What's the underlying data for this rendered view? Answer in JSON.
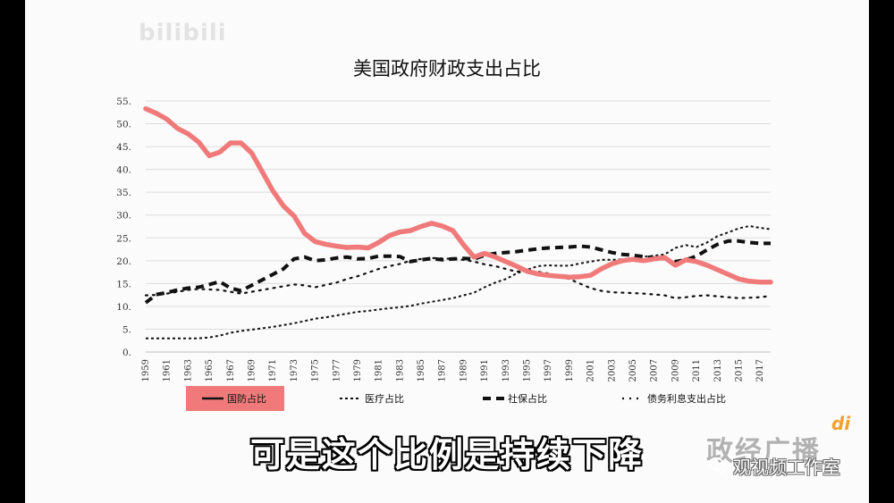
{
  "watermark": "bilibili",
  "subtitle": "可是这个比例是持续下降",
  "logo": "政经广播",
  "logo_mark": "di",
  "channel_label": "观视频工作室",
  "colors": {
    "defense": "#f07a7a",
    "legend_highlight": "#f07a7a",
    "other_series": "#111111"
  },
  "icons": {
    "channel": "wechat-icon"
  },
  "chart_data": {
    "type": "line",
    "title": "美国政府财政支出占比",
    "xlabel": "",
    "ylabel": "",
    "ylim": [
      0,
      55
    ],
    "yticks": [
      "0.",
      "5.",
      "10.",
      "15.",
      "20.",
      "25.",
      "30.",
      "35.",
      "40.",
      "45.",
      "50.",
      "55."
    ],
    "grid": true,
    "legend_position": "bottom",
    "x": [
      1959,
      1960,
      1961,
      1962,
      1963,
      1964,
      1965,
      1966,
      1967,
      1968,
      1969,
      1970,
      1971,
      1972,
      1973,
      1974,
      1975,
      1976,
      1977,
      1978,
      1979,
      1980,
      1981,
      1982,
      1983,
      1984,
      1985,
      1986,
      1987,
      1988,
      1989,
      1990,
      1991,
      1992,
      1993,
      1994,
      1995,
      1996,
      1997,
      1998,
      1999,
      2000,
      2001,
      2002,
      2003,
      2004,
      2005,
      2006,
      2007,
      2008,
      2009,
      2010,
      2011,
      2012,
      2013,
      2014,
      2015,
      2016,
      2017,
      2018
    ],
    "xticks": [
      "1959",
      "1961",
      "1963",
      "1965",
      "1967",
      "1969",
      "1971",
      "1973",
      "1975",
      "1977",
      "1979",
      "1981",
      "1983",
      "1985",
      "1987",
      "1989",
      "1991",
      "1993",
      "1995",
      "1997",
      "1999",
      "2001",
      "2003",
      "2005",
      "2007",
      "2009",
      "2011",
      "2013",
      "2015",
      "2017"
    ],
    "series": [
      {
        "name": "国防占比",
        "style": "solid-thick",
        "values": [
          53.3,
          52.3,
          51.0,
          49.0,
          47.8,
          46.0,
          43.0,
          43.8,
          45.8,
          45.8,
          43.6,
          39.5,
          35.3,
          32.0,
          29.8,
          26.0,
          24.2,
          23.6,
          23.2,
          22.9,
          23.0,
          22.8,
          24.0,
          25.5,
          26.3,
          26.6,
          27.5,
          28.2,
          27.6,
          26.6,
          23.5,
          20.8,
          21.6,
          20.8,
          19.8,
          18.8,
          17.7,
          17.1,
          16.8,
          16.6,
          16.4,
          16.5,
          16.8,
          18.2,
          19.3,
          20.0,
          20.3,
          20.0,
          20.4,
          20.7,
          19.0,
          20.2,
          19.8,
          19.0,
          18.0,
          17.0,
          16.0,
          15.5,
          15.3,
          15.3
        ]
      },
      {
        "name": "医疗占比",
        "style": "dotted",
        "values": [
          3.0,
          3.0,
          3.0,
          3.0,
          3.0,
          3.0,
          3.2,
          3.6,
          4.2,
          4.6,
          4.9,
          5.2,
          5.5,
          5.9,
          6.3,
          6.8,
          7.3,
          7.6,
          8.0,
          8.4,
          8.8,
          9.0,
          9.3,
          9.6,
          9.8,
          10.1,
          10.6,
          11.0,
          11.4,
          11.8,
          12.4,
          13.0,
          14.2,
          15.2,
          16.0,
          17.2,
          18.0,
          18.8,
          19.0,
          18.9,
          18.9,
          19.4,
          19.8,
          20.2,
          20.2,
          20.3,
          20.6,
          20.9,
          21.1,
          21.4,
          22.8,
          23.4,
          23.0,
          24.0,
          25.4,
          26.2,
          27.1,
          27.6,
          27.2,
          26.9
        ]
      },
      {
        "name": "社保占比",
        "style": "dashed-thick",
        "values": [
          10.8,
          12.6,
          13.0,
          13.6,
          14.0,
          14.2,
          14.8,
          15.4,
          14.0,
          13.4,
          14.6,
          15.8,
          17.0,
          18.2,
          20.4,
          20.8,
          20.0,
          20.2,
          20.6,
          20.8,
          20.4,
          20.5,
          21.0,
          21.0,
          20.9,
          19.8,
          20.2,
          20.5,
          20.2,
          20.4,
          20.5,
          20.4,
          21.2,
          21.6,
          21.8,
          22.0,
          22.3,
          22.6,
          22.8,
          22.9,
          23.0,
          23.2,
          23.0,
          22.4,
          21.8,
          21.4,
          21.2,
          20.9,
          20.6,
          20.5,
          19.8,
          20.2,
          21.0,
          22.4,
          23.6,
          24.3,
          24.3,
          24.0,
          23.8,
          23.8
        ]
      },
      {
        "name": "债务利息支出占比",
        "style": "dotted-sparse",
        "values": [
          12.4,
          12.5,
          12.8,
          13.2,
          13.6,
          13.8,
          13.7,
          13.6,
          13.2,
          12.8,
          13.2,
          13.6,
          14.0,
          14.4,
          14.8,
          14.6,
          14.2,
          14.7,
          15.2,
          16.0,
          16.6,
          17.4,
          18.2,
          18.8,
          19.3,
          20.0,
          20.4,
          20.6,
          20.5,
          20.4,
          20.2,
          19.8,
          19.2,
          18.8,
          18.2,
          17.6,
          17.8,
          17.6,
          17.2,
          16.6,
          16.0,
          15.0,
          14.0,
          13.4,
          13.1,
          13.0,
          12.9,
          12.8,
          12.6,
          12.4,
          11.8,
          12.0,
          12.3,
          12.4,
          12.2,
          12.0,
          11.8,
          11.9,
          12.0,
          12.3
        ]
      }
    ]
  }
}
